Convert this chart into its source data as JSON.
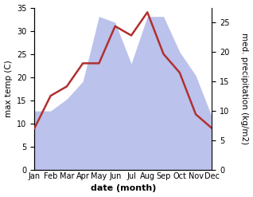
{
  "months": [
    "Jan",
    "Feb",
    "Mar",
    "Apr",
    "May",
    "Jun",
    "Jul",
    "Aug",
    "Sep",
    "Oct",
    "Nov",
    "Dec"
  ],
  "temp": [
    9,
    16,
    18,
    23,
    23,
    31,
    29,
    34,
    25,
    21,
    12,
    9
  ],
  "precip": [
    10,
    10,
    12,
    15,
    26,
    25,
    18,
    26,
    26,
    20,
    16,
    9
  ],
  "temp_color": "#b03030",
  "precip_color": "#b0b8e8",
  "left_ylim": [
    0,
    35
  ],
  "right_ylim": [
    0,
    27.5
  ],
  "left_yticks": [
    0,
    5,
    10,
    15,
    20,
    25,
    30,
    35
  ],
  "right_yticks": [
    0,
    5,
    10,
    15,
    20,
    25
  ],
  "xlabel": "date (month)",
  "ylabel_left": "max temp (C)",
  "ylabel_right": "med. precipitation (kg/m2)",
  "bg_color": "#ffffff",
  "temp_linewidth": 1.8,
  "label_fontsize": 7.5,
  "tick_fontsize": 7,
  "xlabel_fontsize": 8
}
